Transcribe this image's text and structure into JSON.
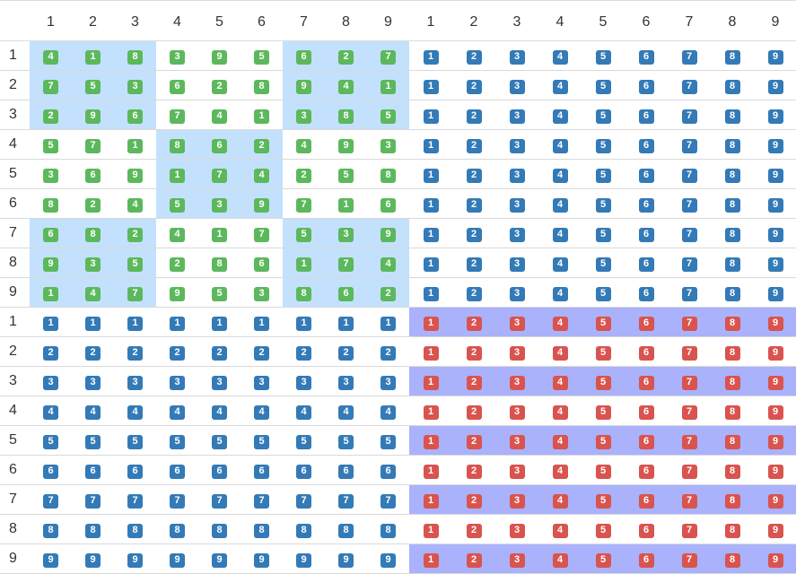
{
  "column_headers": [
    "1",
    "2",
    "3",
    "4",
    "5",
    "6",
    "7",
    "8",
    "9",
    "1",
    "2",
    "3",
    "4",
    "5",
    "6",
    "7",
    "8",
    "9"
  ],
  "row_headers": [
    "1",
    "2",
    "3",
    "4",
    "5",
    "6",
    "7",
    "8",
    "9",
    "1",
    "2",
    "3",
    "4",
    "5",
    "6",
    "7",
    "8",
    "9"
  ],
  "sudoku_grid": [
    [
      "4",
      "1",
      "8",
      "3",
      "9",
      "5",
      "6",
      "2",
      "7"
    ],
    [
      "7",
      "5",
      "3",
      "6",
      "2",
      "8",
      "9",
      "4",
      "1"
    ],
    [
      "2",
      "9",
      "6",
      "7",
      "4",
      "1",
      "3",
      "8",
      "5"
    ],
    [
      "5",
      "7",
      "1",
      "8",
      "6",
      "2",
      "4",
      "9",
      "3"
    ],
    [
      "3",
      "6",
      "9",
      "1",
      "7",
      "4",
      "2",
      "5",
      "8"
    ],
    [
      "8",
      "2",
      "4",
      "5",
      "3",
      "9",
      "7",
      "1",
      "6"
    ],
    [
      "6",
      "8",
      "2",
      "4",
      "1",
      "7",
      "5",
      "3",
      "9"
    ],
    [
      "9",
      "3",
      "5",
      "2",
      "8",
      "6",
      "1",
      "7",
      "4"
    ],
    [
      "1",
      "4",
      "7",
      "9",
      "5",
      "3",
      "8",
      "6",
      "2"
    ]
  ],
  "colors": {
    "green_badge": "#5cb85c",
    "blue_badge": "#337ab7",
    "red_badge": "#d9534f",
    "block_highlight": "#c3e1fd",
    "row_highlight": "#aab2fb"
  }
}
